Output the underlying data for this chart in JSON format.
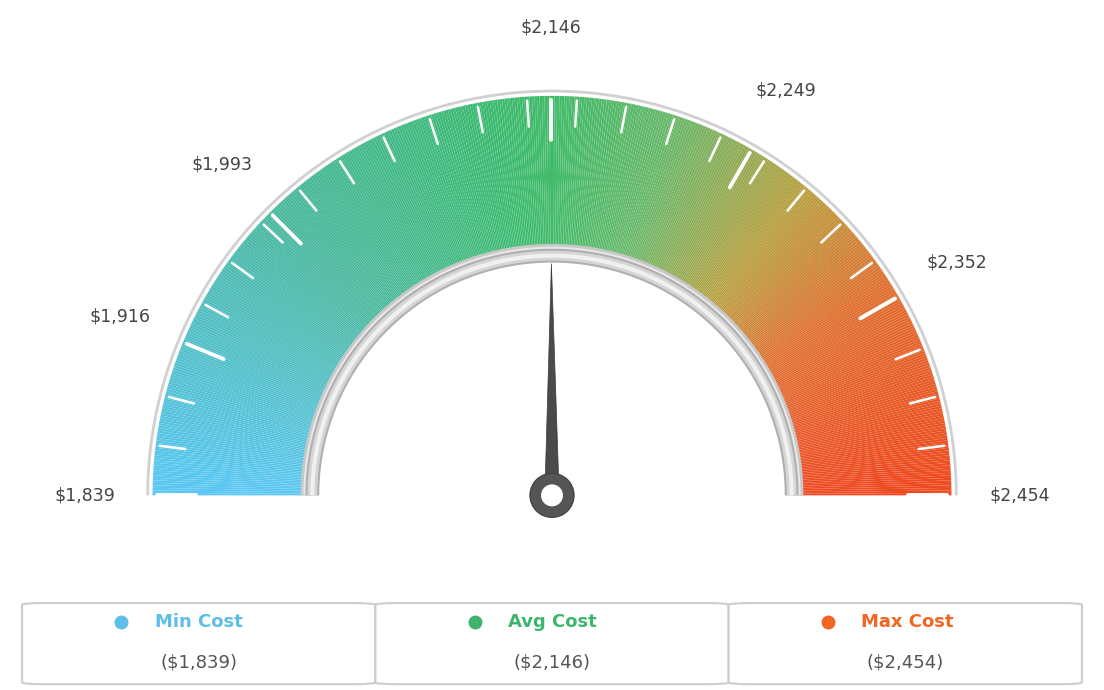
{
  "min_val": 1839,
  "max_val": 2454,
  "avg_val": 2146,
  "label_values": [
    1839,
    1916,
    1993,
    2146,
    2249,
    2352,
    2454
  ],
  "label_texts": [
    "$1,839",
    "$1,916",
    "$1,993",
    "$2,146",
    "$2,249",
    "$2,352",
    "$2,454"
  ],
  "legend_min_color": "#5bbfe8",
  "legend_avg_color": "#3db56e",
  "legend_max_color": "#f26522",
  "background_color": "#ffffff",
  "needle_color": "#555555",
  "color_stops": [
    [
      0.0,
      "#5bc8f5"
    ],
    [
      0.25,
      "#4ab8a0"
    ],
    [
      0.45,
      "#3dbb72"
    ],
    [
      0.5,
      "#42bc6a"
    ],
    [
      0.6,
      "#6ab86a"
    ],
    [
      0.72,
      "#b8a040"
    ],
    [
      0.82,
      "#e07030"
    ],
    [
      1.0,
      "#f04820"
    ]
  ]
}
